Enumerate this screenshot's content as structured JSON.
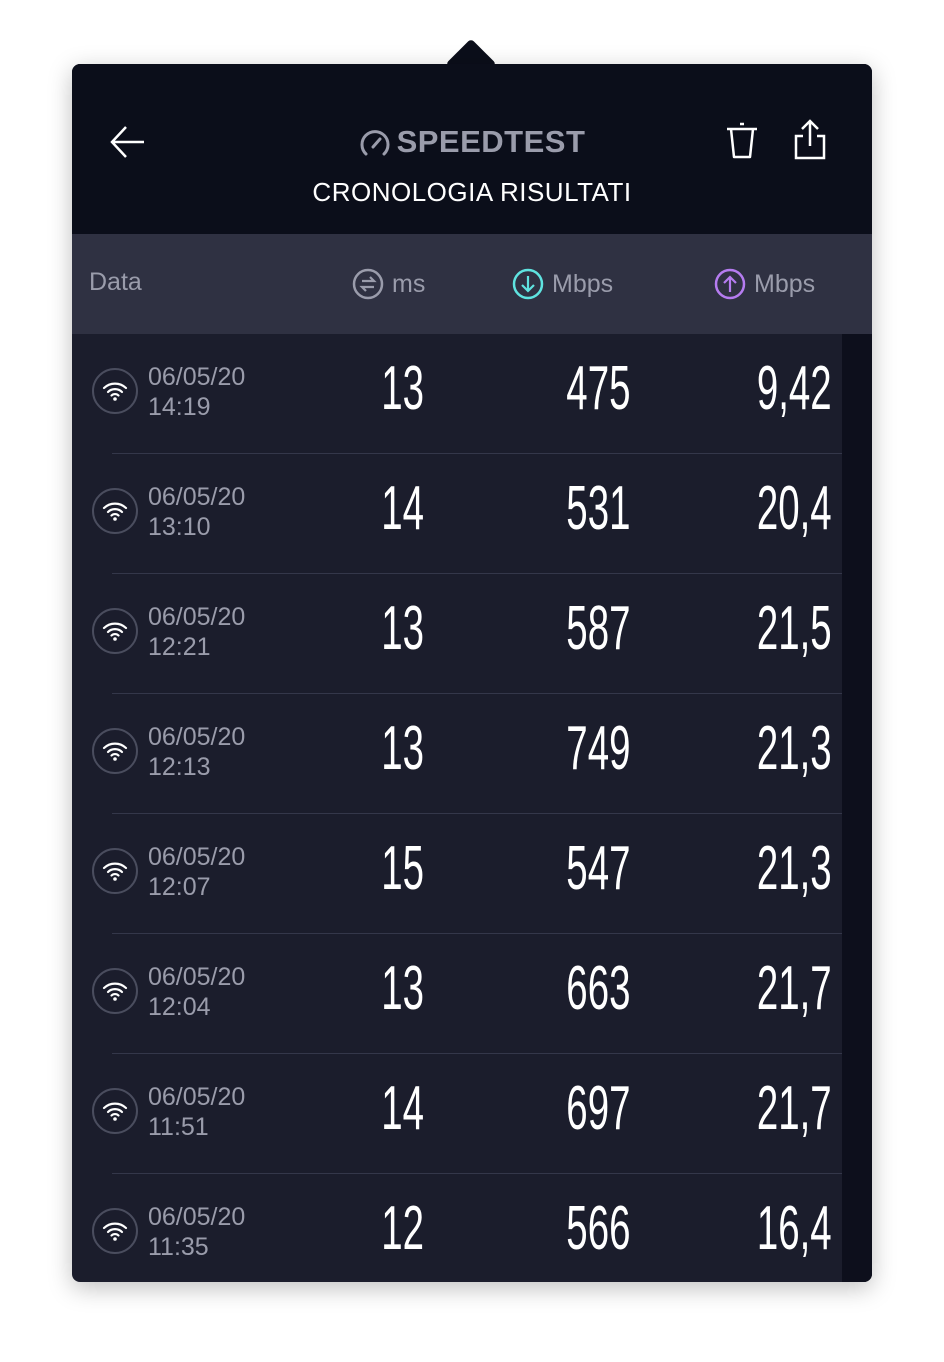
{
  "header": {
    "brand": "SPEEDTEST",
    "subtitle": "CRONOLOGIA RISULTATI",
    "back_icon": "arrow-left-icon",
    "delete_icon": "trash-icon",
    "share_icon": "share-icon"
  },
  "columns": {
    "date": "Data",
    "ping": "ms",
    "download": "Mbps",
    "upload": "Mbps"
  },
  "colors": {
    "download": "#5fe3e0",
    "upload": "#b57cf0",
    "ping": "#9a9cab"
  },
  "rows": [
    {
      "date": "06/05/20",
      "time": "14:19",
      "ping": "13",
      "download": "475",
      "upload": "9,42"
    },
    {
      "date": "06/05/20",
      "time": "13:10",
      "ping": "14",
      "download": "531",
      "upload": "20,4"
    },
    {
      "date": "06/05/20",
      "time": "12:21",
      "ping": "13",
      "download": "587",
      "upload": "21,5"
    },
    {
      "date": "06/05/20",
      "time": "12:13",
      "ping": "13",
      "download": "749",
      "upload": "21,3"
    },
    {
      "date": "06/05/20",
      "time": "12:07",
      "ping": "15",
      "download": "547",
      "upload": "21,3"
    },
    {
      "date": "06/05/20",
      "time": "12:04",
      "ping": "13",
      "download": "663",
      "upload": "21,7"
    },
    {
      "date": "06/05/20",
      "time": "11:51",
      "ping": "14",
      "download": "697",
      "upload": "21,7"
    },
    {
      "date": "06/05/20",
      "time": "11:35",
      "ping": "12",
      "download": "566",
      "upload": "16,4"
    }
  ]
}
